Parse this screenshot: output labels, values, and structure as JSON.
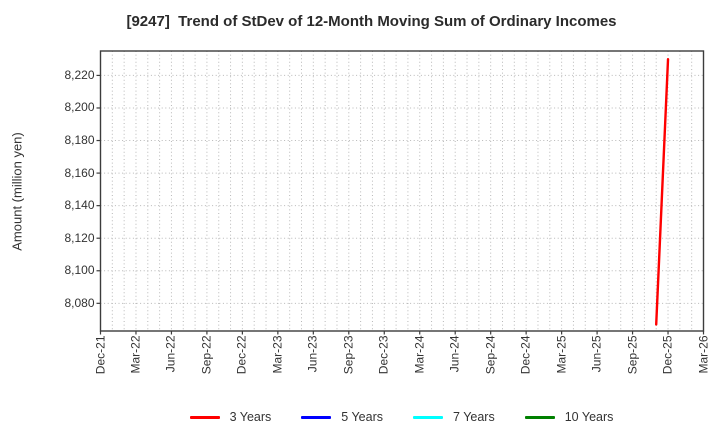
{
  "title": "[9247]  Trend of StDev of 12-Month Moving Sum of Ordinary Incomes",
  "chart_data": {
    "type": "line",
    "title": "[9247]  Trend of StDev of 12-Month Moving Sum of Ordinary Incomes",
    "xlabel": "",
    "ylabel": "Amount (million yen)",
    "y_ticks": [
      8080,
      8100,
      8120,
      8140,
      8160,
      8180,
      8200,
      8220
    ],
    "ylim": [
      8063,
      8235
    ],
    "x_tick_labels": [
      "Dec-21",
      "Mar-22",
      "Jun-22",
      "Sep-22",
      "Dec-22",
      "Mar-23",
      "Jun-23",
      "Sep-23",
      "Dec-23",
      "Mar-24",
      "Jun-24",
      "Sep-24",
      "Dec-24",
      "Mar-25",
      "Jun-25",
      "Sep-25",
      "Dec-25",
      "Mar-26"
    ],
    "x_tick_interval_months": 3,
    "x_total_months": 51,
    "grid": {
      "horizontal": "at each y tick",
      "vertical": "monthly (minor)",
      "style": "dotted",
      "color": "#b8b8b8"
    },
    "frame_color": "#3c3c3c",
    "legend_position": "bottom",
    "series": [
      {
        "name": "3 Years",
        "color": "#ff0000",
        "points": [
          {
            "x": "Nov-25",
            "month_index": 47,
            "y": 8067
          },
          {
            "x": "Dec-25",
            "month_index": 48,
            "y": 8230
          }
        ]
      },
      {
        "name": "5 Years",
        "color": "#0000ff",
        "points": []
      },
      {
        "name": "7 Years",
        "color": "#00ffff",
        "points": []
      },
      {
        "name": "10 Years",
        "color": "#008000",
        "points": []
      }
    ]
  }
}
